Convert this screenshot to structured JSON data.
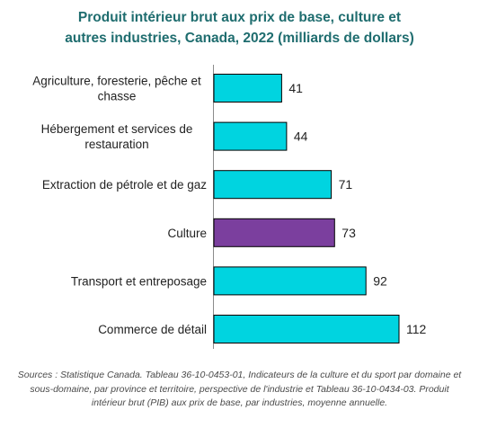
{
  "chart_data": {
    "type": "bar",
    "orientation": "horizontal",
    "title": "Produit intérieur brut aux prix de base, culture et autres industries, Canada, 2022 (milliards de dollars)",
    "title_lines": [
      "Produit intérieur brut aux prix de base, culture et",
      "autres industries, Canada, 2022  (milliards de dollars)"
    ],
    "categories": [
      "Agriculture, foresterie, pêche et chasse",
      "Hébergement et services de restauration",
      "Extraction de pétrole et de gaz",
      "Culture",
      "Transport et entreposage",
      "Commerce de détail"
    ],
    "category_label_lines": [
      [
        "Agriculture, foresterie, pêche et",
        "chasse"
      ],
      [
        "Hébergement et services de",
        "restauration"
      ],
      [
        "Extraction de pétrole et de gaz"
      ],
      [
        "Culture"
      ],
      [
        "Transport et entreposage"
      ],
      [
        "Commerce de détail"
      ]
    ],
    "values": [
      41,
      44,
      71,
      73,
      92,
      112
    ],
    "value_labels": [
      "41",
      "44",
      "71",
      "73",
      "92",
      "112"
    ],
    "bar_colors": [
      "#00d4e0",
      "#00d4e0",
      "#00d4e0",
      "#7b3f9e",
      "#00d4e0",
      "#00d4e0"
    ],
    "bar_edge_color": "#000000",
    "xlim": [
      0,
      112
    ],
    "grid": false,
    "legend": "none",
    "xlabel": "",
    "ylabel": ""
  },
  "source": "Sources : Statistique Canada. Tableau 36-10-0453-01,  Indicateurs de la culture et du sport par domaine et sous-domaine, par province et territoire,  perspective de l'industrie et Tableau 36-10-0434-03.  Produit intérieur brut (PIB) aux prix de base, par industries, moyenne annuelle.",
  "colors": {
    "title": "#1f6d6f",
    "highlight": "#7b3f9e",
    "bar": "#00d4e0"
  }
}
